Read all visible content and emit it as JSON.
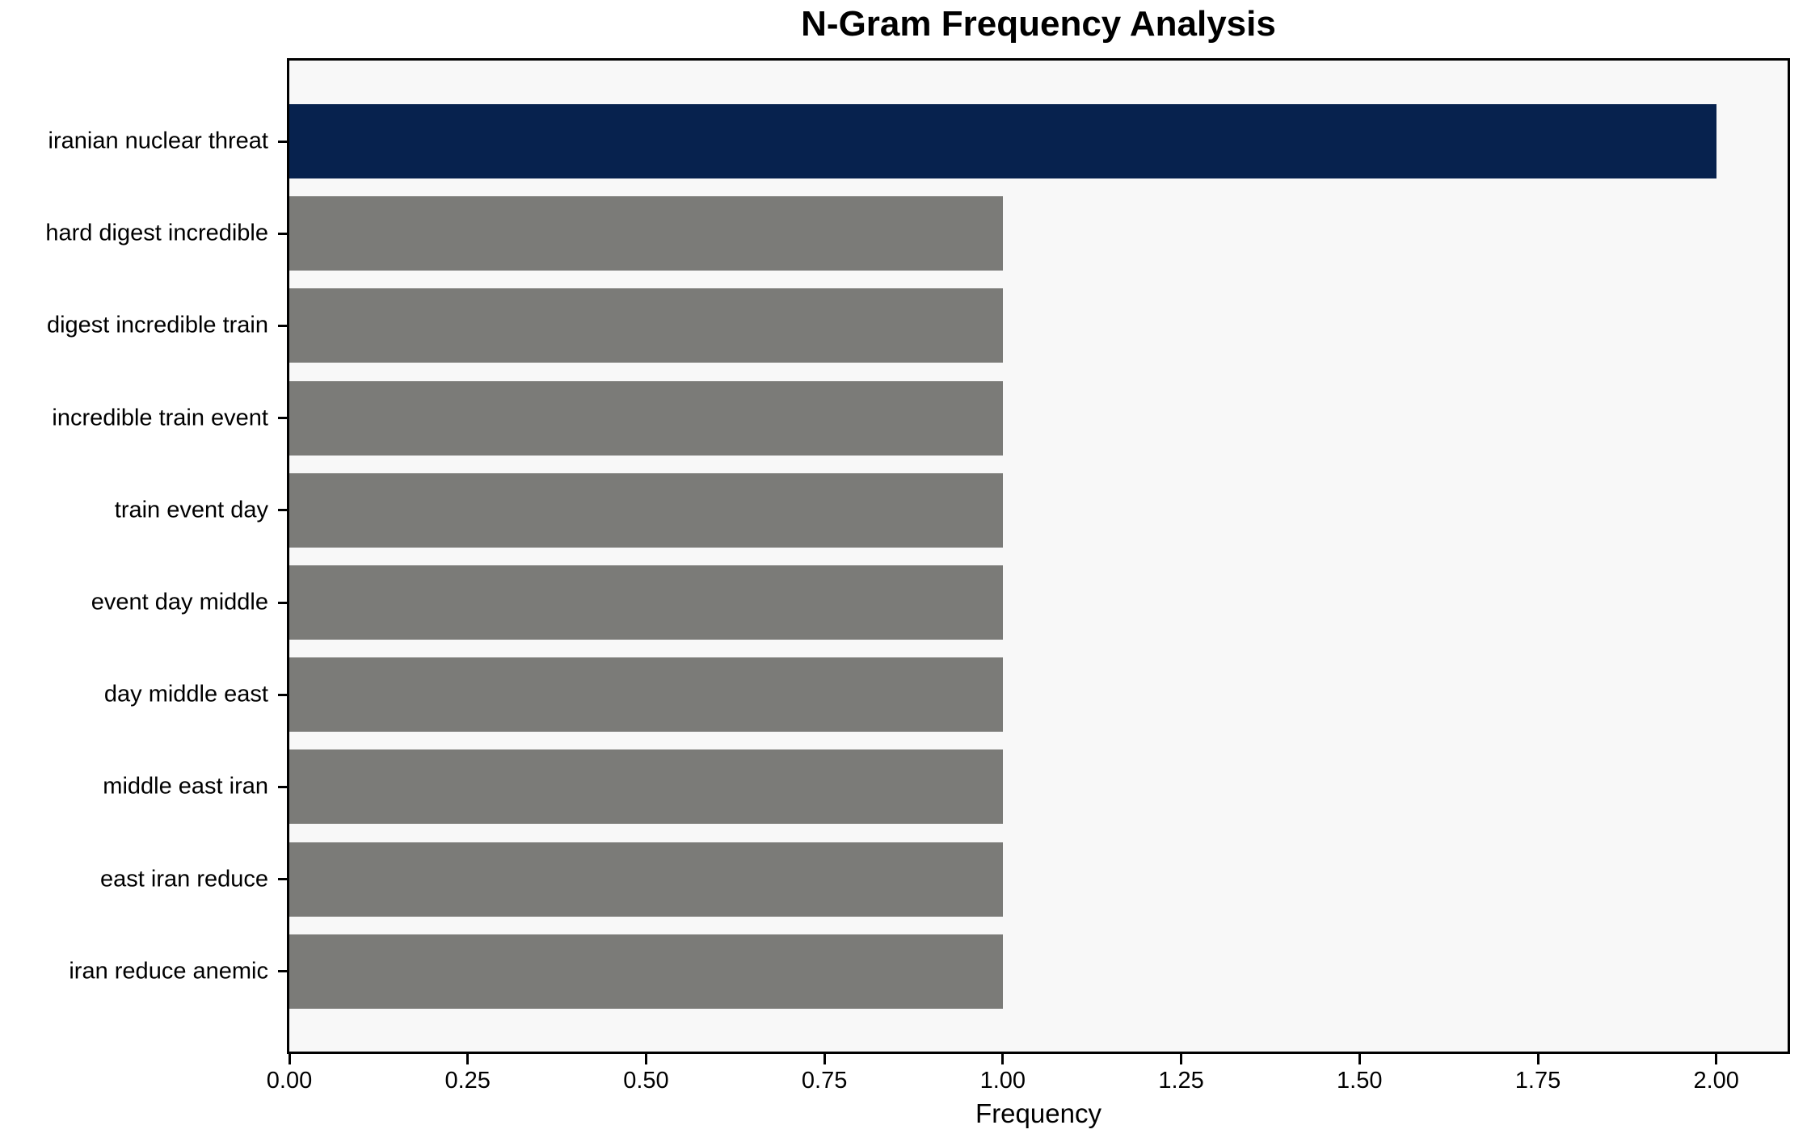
{
  "chart_data": {
    "type": "bar",
    "orientation": "horizontal",
    "title": "N-Gram Frequency Analysis",
    "xlabel": "Frequency",
    "ylabel": "",
    "categories": [
      "iranian nuclear threat",
      "hard digest incredible",
      "digest incredible train",
      "incredible train event",
      "train event day",
      "event day middle",
      "day middle east",
      "middle east iran",
      "east iran reduce",
      "iran reduce anemic"
    ],
    "values": [
      2.0,
      1.0,
      1.0,
      1.0,
      1.0,
      1.0,
      1.0,
      1.0,
      1.0,
      1.0
    ],
    "bar_colors": [
      "#07224E",
      "#7B7B78",
      "#7B7B78",
      "#7B7B78",
      "#7B7B78",
      "#7B7B78",
      "#7B7B78",
      "#7B7B78",
      "#7B7B78",
      "#7B7B78"
    ],
    "x_ticks": [
      0.0,
      0.25,
      0.5,
      0.75,
      1.0,
      1.25,
      1.5,
      1.75,
      2.0
    ],
    "x_tick_labels": [
      "0.00",
      "0.25",
      "0.50",
      "0.75",
      "1.00",
      "1.25",
      "1.50",
      "1.75",
      "2.00"
    ],
    "xlim": [
      0,
      2.1
    ],
    "grid": false,
    "legend": false,
    "colors": {
      "highlight_bar": "#07224E",
      "default_bar": "#7B7B78",
      "plot_background": "#F8F8F8",
      "figure_background": "#FFFFFF",
      "axis_border": "#000000",
      "text": "#000000"
    }
  }
}
